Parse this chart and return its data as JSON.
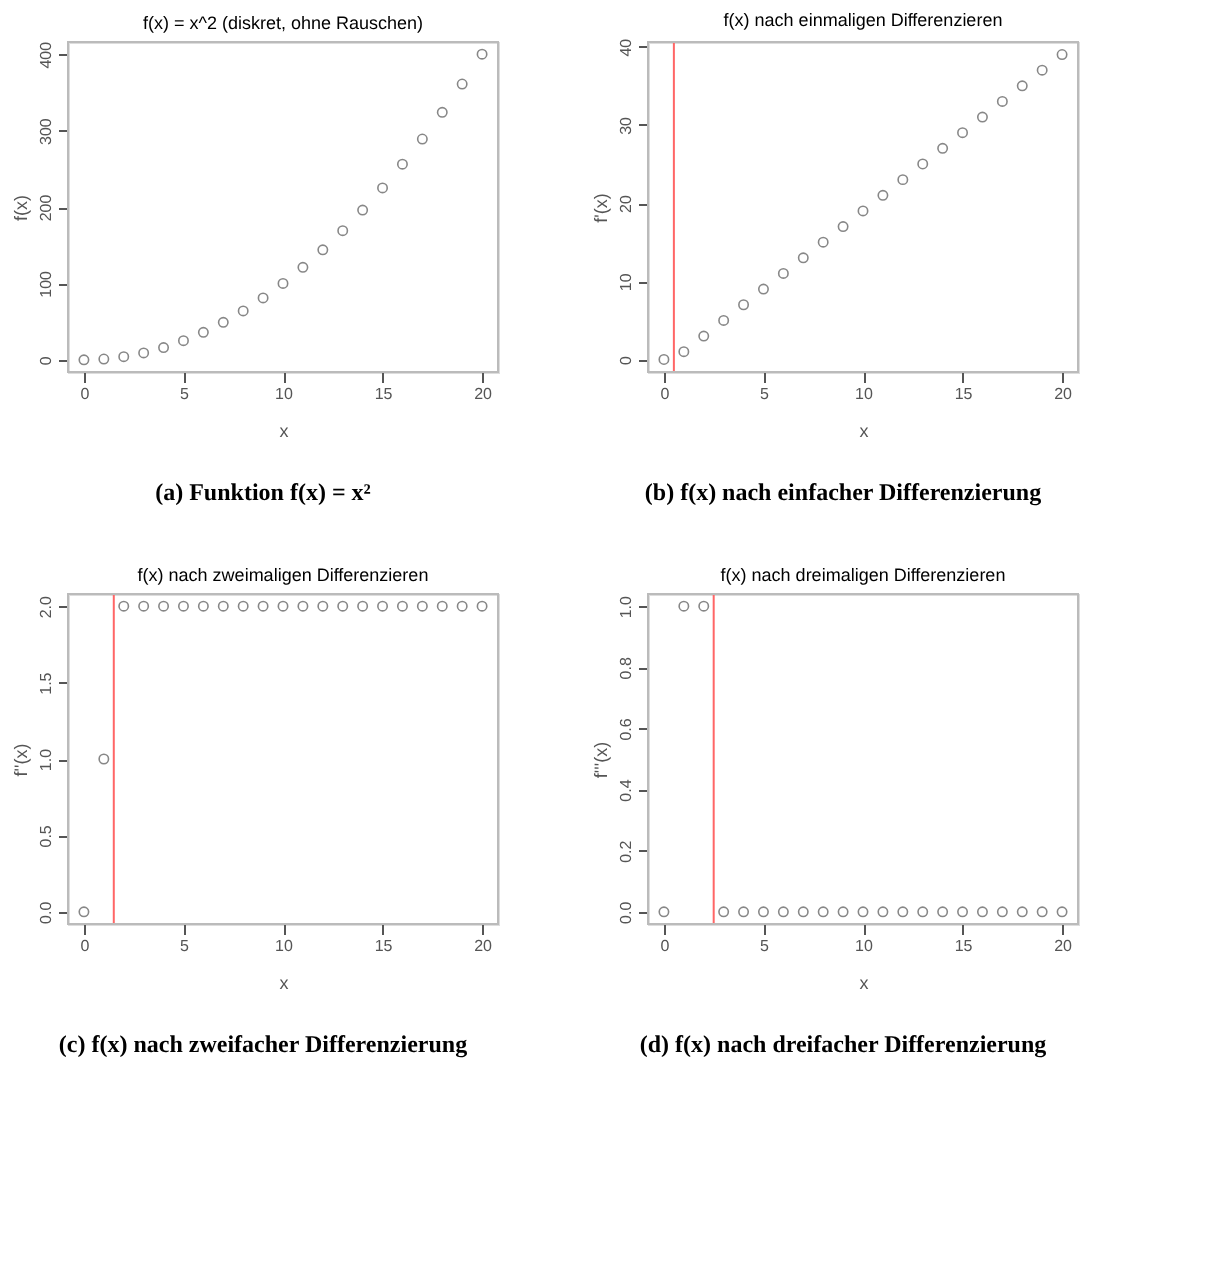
{
  "chart_data": [
    {
      "type": "scatter",
      "title": "f(x) = x^2 (diskret, ohne Rauschen)",
      "xlabel": "x",
      "ylabel": "f(x)",
      "marker": "circle",
      "grid": false,
      "x": [
        0,
        1,
        2,
        3,
        4,
        5,
        6,
        7,
        8,
        9,
        10,
        11,
        12,
        13,
        14,
        15,
        16,
        17,
        18,
        19,
        20
      ],
      "series": [
        {
          "color": "#555555",
          "values": [
            0,
            1,
            4,
            9,
            16,
            25,
            36,
            49,
            64,
            81,
            100,
            121,
            144,
            169,
            196,
            225,
            256,
            289,
            324,
            361,
            400
          ]
        }
      ],
      "xlim": [
        -0.8,
        20.8
      ],
      "xticks": [
        0,
        5,
        10,
        15,
        20
      ],
      "ylim": [
        -16,
        416
      ],
      "yticks": [
        0,
        100,
        200,
        300,
        400
      ],
      "annotations": [
        "(a) Funktion f(x) = x²"
      ]
    },
    {
      "type": "scatter",
      "title": "f(x) nach einmaligen Differenzieren",
      "xlabel": "x",
      "ylabel": "f'(x)",
      "marker": "circle",
      "grid": false,
      "x": [
        0,
        1,
        2,
        3,
        4,
        5,
        6,
        7,
        8,
        9,
        10,
        11,
        12,
        13,
        14,
        15,
        16,
        17,
        18,
        19,
        20
      ],
      "series": [
        {
          "color": "#555555",
          "values": [
            0,
            1,
            3,
            5,
            7,
            9,
            11,
            13,
            15,
            17,
            19,
            21,
            23,
            25,
            27,
            29,
            31,
            33,
            35,
            37,
            39
          ]
        }
      ],
      "xlim": [
        -0.8,
        20.8
      ],
      "xticks": [
        0,
        5,
        10,
        15,
        20
      ],
      "ylim": [
        -1.6,
        40.6
      ],
      "yticks": [
        0,
        10,
        20,
        30,
        40
      ],
      "ref_lines": [
        {
          "axis": "x",
          "value": 0.5,
          "color": "#ff6666"
        }
      ],
      "annotations": [
        "(b) f(x) nach einfacher Differenzierung"
      ]
    },
    {
      "type": "scatter",
      "title": "f(x) nach zweimaligen Differenzieren",
      "xlabel": "x",
      "ylabel": "f''(x)",
      "marker": "circle",
      "grid": false,
      "x": [
        0,
        1,
        2,
        3,
        4,
        5,
        6,
        7,
        8,
        9,
        10,
        11,
        12,
        13,
        14,
        15,
        16,
        17,
        18,
        19,
        20
      ],
      "series": [
        {
          "color": "#555555",
          "values": [
            0,
            1,
            2,
            2,
            2,
            2,
            2,
            2,
            2,
            2,
            2,
            2,
            2,
            2,
            2,
            2,
            2,
            2,
            2,
            2,
            2
          ]
        }
      ],
      "xlim": [
        -0.8,
        20.8
      ],
      "xticks": [
        0,
        5,
        10,
        15,
        20
      ],
      "ylim": [
        -0.08,
        2.08
      ],
      "yticks": [
        {
          "value": 0,
          "label": "0.0"
        },
        {
          "value": 0.5,
          "label": "0.5"
        },
        {
          "value": 1,
          "label": "1.0"
        },
        {
          "value": 1.5,
          "label": "1.5"
        },
        {
          "value": 2,
          "label": "2.0"
        }
      ],
      "ref_lines": [
        {
          "axis": "x",
          "value": 1.5,
          "color": "#ff6666"
        }
      ],
      "annotations": [
        "(c) f(x) nach zweifacher Differenzierung"
      ]
    },
    {
      "type": "scatter",
      "title": "f(x) nach dreimaligen Differenzieren",
      "xlabel": "x",
      "ylabel": "f'''(x)",
      "marker": "circle",
      "grid": false,
      "x": [
        0,
        1,
        2,
        3,
        4,
        5,
        6,
        7,
        8,
        9,
        10,
        11,
        12,
        13,
        14,
        15,
        16,
        17,
        18,
        19,
        20
      ],
      "series": [
        {
          "color": "#555555",
          "values": [
            0,
            1,
            1,
            0,
            0,
            0,
            0,
            0,
            0,
            0,
            0,
            0,
            0,
            0,
            0,
            0,
            0,
            0,
            0,
            0,
            0
          ]
        }
      ],
      "xlim": [
        -0.8,
        20.8
      ],
      "xticks": [
        0,
        5,
        10,
        15,
        20
      ],
      "ylim": [
        -0.04,
        1.04
      ],
      "yticks": [
        {
          "value": 0,
          "label": "0.0"
        },
        {
          "value": 0.2,
          "label": "0.2"
        },
        {
          "value": 0.4,
          "label": "0.4"
        },
        {
          "value": 0.6,
          "label": "0.6"
        },
        {
          "value": 0.8,
          "label": "0.8"
        },
        {
          "value": 1,
          "label": "1.0"
        }
      ],
      "ref_lines": [
        {
          "axis": "x",
          "value": 2.5,
          "color": "#ff6666"
        }
      ],
      "annotations": [
        "(d) f(x) nach dreifacher Differenzierung"
      ]
    }
  ]
}
